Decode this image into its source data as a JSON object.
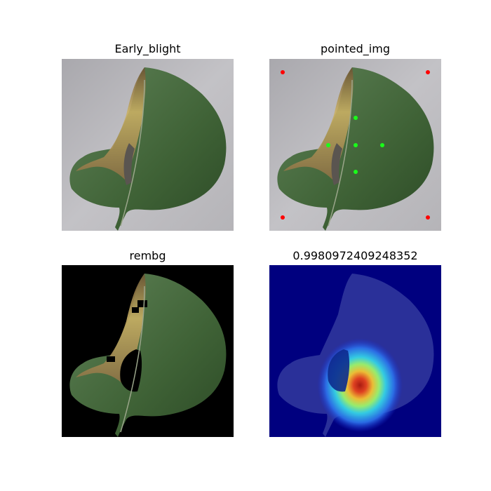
{
  "panels": [
    {
      "title": "Early_blight"
    },
    {
      "title": "pointed_img"
    },
    {
      "title": "rembg"
    },
    {
      "title": "0.9980972409248352"
    }
  ],
  "colors": {
    "background_gray": "#b9b8bc",
    "leaf_green": "#4e6e44",
    "leaf_dark": "#2f4b2a",
    "lesion_brown": "#7a6240",
    "lesion_yellow": "#c8ad5e",
    "corner_point": "#ff0000",
    "center_point": "#19ff19",
    "heatmap_bg": "#00007f"
  },
  "points": {
    "corner": "red-corner-point",
    "center": "green-center-point"
  }
}
